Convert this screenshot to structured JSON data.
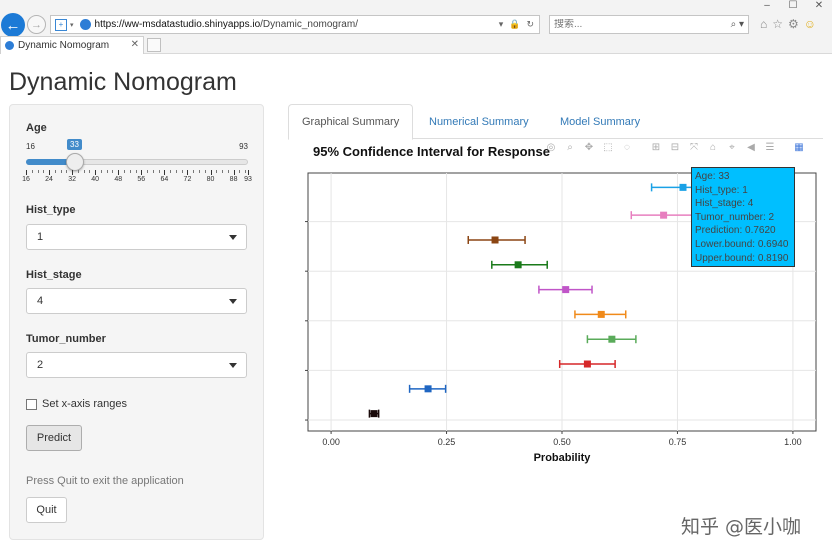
{
  "browser": {
    "window_controls": [
      "–",
      "☐",
      "✕"
    ],
    "url_host": "https://ww-msdatastudio.shinyapps.io",
    "url_path": "/Dynamic_nomogram/",
    "search_placeholder": "搜索...",
    "tab_title": "Dynamic Nomogram"
  },
  "app": {
    "title": "Dynamic Nomogram"
  },
  "sidebar": {
    "age": {
      "label": "Age",
      "min": 16,
      "max": 93,
      "value": 33,
      "min_label": "16",
      "max_label": "93",
      "value_label": "33",
      "tick_labels": [
        "16",
        "24",
        "32",
        "40",
        "48",
        "56",
        "64",
        "72",
        "80",
        "88",
        "93"
      ]
    },
    "hist_type": {
      "label": "Hist_type",
      "value": "1"
    },
    "hist_stage": {
      "label": "Hist_stage",
      "value": "4"
    },
    "tumor_number": {
      "label": "Tumor_number",
      "value": "2"
    },
    "xaxis_checkbox": {
      "label": "Set x-axis ranges",
      "checked": false
    },
    "predict_label": "Predict",
    "help_text": "Press Quit to exit the application",
    "quit_label": "Quit"
  },
  "tabs": [
    {
      "label": "Graphical Summary",
      "active": true
    },
    {
      "label": "Numerical Summary",
      "active": false
    },
    {
      "label": "Model Summary",
      "active": false
    }
  ],
  "tooltip": {
    "lines": [
      "Age: 33",
      "Hist_type: 1",
      "Hist_stage: 4",
      "Tumor_number: 2",
      "Prediction: 0.7620",
      "Lower.bound: 0.6940",
      "Upper.bound: 0.8190"
    ],
    "color": "#00bfff"
  },
  "chart_data": {
    "type": "scatter",
    "title": "95% Confidence Interval for Response",
    "xlabel": "Probability",
    "ylabel": "",
    "xlim": [
      -0.05,
      1.05
    ],
    "xticks": [
      0.0,
      0.25,
      0.5,
      0.75,
      1.0
    ],
    "xtick_labels": [
      "0.00",
      "0.25",
      "0.50",
      "0.75",
      "1.00"
    ],
    "grid": true,
    "series": [
      {
        "pred": 0.762,
        "lower": 0.694,
        "upper": 0.819,
        "color": "#1aa1e6"
      },
      {
        "pred": 0.72,
        "lower": 0.65,
        "upper": 0.79,
        "color": "#e77fbf"
      },
      {
        "pred": 0.355,
        "lower": 0.297,
        "upper": 0.42,
        "color": "#8b4513"
      },
      {
        "pred": 0.405,
        "lower": 0.348,
        "upper": 0.468,
        "color": "#1a7a1a"
      },
      {
        "pred": 0.508,
        "lower": 0.45,
        "upper": 0.565,
        "color": "#c055c8"
      },
      {
        "pred": 0.585,
        "lower": 0.528,
        "upper": 0.638,
        "color": "#f08a1a"
      },
      {
        "pred": 0.608,
        "lower": 0.555,
        "upper": 0.66,
        "color": "#5aab5a"
      },
      {
        "pred": 0.555,
        "lower": 0.495,
        "upper": 0.615,
        "color": "#d62728"
      },
      {
        "pred": 0.21,
        "lower": 0.17,
        "upper": 0.248,
        "color": "#1f66c2"
      },
      {
        "pred": 0.093,
        "lower": 0.083,
        "upper": 0.103,
        "color": "#1a0a0a"
      }
    ]
  },
  "modebar_icons": [
    "camera-icon",
    "zoom-icon",
    "pan-icon",
    "box-select-icon",
    "lasso-icon",
    "zoom-in-icon",
    "zoom-out-icon",
    "autoscale-icon",
    "home-icon",
    "spike-icon",
    "hover-closest-icon",
    "hover-compare-icon",
    "plotly-logo-icon"
  ],
  "watermark": "知乎 @医小咖"
}
